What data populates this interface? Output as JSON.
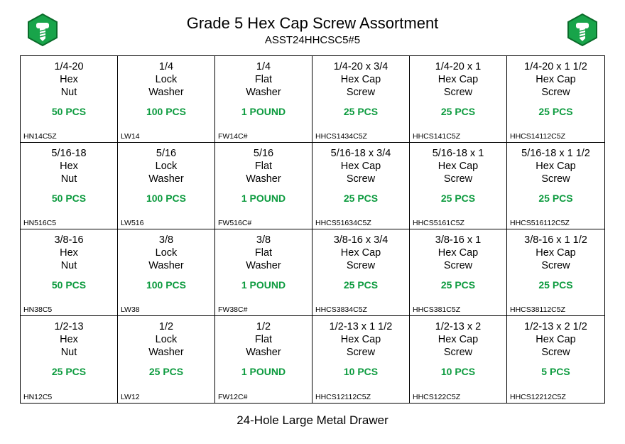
{
  "colors": {
    "accent_green": "#0d9b3f",
    "icon_dark": "#0a6b2a",
    "text": "#000000",
    "border": "#000000",
    "background": "#ffffff"
  },
  "header": {
    "title": "Grade 5 Hex Cap Screw Assortment",
    "subtitle": "ASST24HHCSC5#5"
  },
  "footer": "24-Hole Large Metal Drawer",
  "grid": {
    "columns": 6,
    "rows": 4,
    "cells": [
      {
        "line1": "1/4-20",
        "line2": "Hex",
        "line3": "Nut",
        "qty": "50 PCS",
        "sku": "HN14C5Z"
      },
      {
        "line1": "1/4",
        "line2": "Lock",
        "line3": "Washer",
        "qty": "100 PCS",
        "sku": "LW14"
      },
      {
        "line1": "1/4",
        "line2": "Flat",
        "line3": "Washer",
        "qty": "1 POUND",
        "sku": "FW14C#"
      },
      {
        "line1": "1/4-20 x 3/4",
        "line2": "Hex Cap",
        "line3": "Screw",
        "qty": "25 PCS",
        "sku": "HHCS1434C5Z"
      },
      {
        "line1": "1/4-20 x 1",
        "line2": "Hex Cap",
        "line3": "Screw",
        "qty": "25 PCS",
        "sku": "HHCS141C5Z"
      },
      {
        "line1": "1/4-20 x 1 1/2",
        "line2": "Hex Cap",
        "line3": "Screw",
        "qty": "25 PCS",
        "sku": "HHCS14112C5Z"
      },
      {
        "line1": "5/16-18",
        "line2": "Hex",
        "line3": "Nut",
        "qty": "50 PCS",
        "sku": "HN516C5"
      },
      {
        "line1": "5/16",
        "line2": "Lock",
        "line3": "Washer",
        "qty": "100 PCS",
        "sku": "LW516"
      },
      {
        "line1": "5/16",
        "line2": "Flat",
        "line3": "Washer",
        "qty": "1 POUND",
        "sku": "FW516C#"
      },
      {
        "line1": "5/16-18 x 3/4",
        "line2": "Hex Cap",
        "line3": "Screw",
        "qty": "25 PCS",
        "sku": "HHCS51634C5Z"
      },
      {
        "line1": "5/16-18 x 1",
        "line2": "Hex Cap",
        "line3": "Screw",
        "qty": "25 PCS",
        "sku": "HHCS5161C5Z"
      },
      {
        "line1": "5/16-18 x 1 1/2",
        "line2": "Hex Cap",
        "line3": "Screw",
        "qty": "25 PCS",
        "sku": "HHCS516112C5Z"
      },
      {
        "line1": "3/8-16",
        "line2": "Hex",
        "line3": "Nut",
        "qty": "50 PCS",
        "sku": "HN38C5"
      },
      {
        "line1": "3/8",
        "line2": "Lock",
        "line3": "Washer",
        "qty": "100 PCS",
        "sku": "LW38"
      },
      {
        "line1": "3/8",
        "line2": "Flat",
        "line3": "Washer",
        "qty": "1 POUND",
        "sku": "FW38C#"
      },
      {
        "line1": "3/8-16 x 3/4",
        "line2": "Hex Cap",
        "line3": "Screw",
        "qty": "25 PCS",
        "sku": "HHCS3834C5Z"
      },
      {
        "line1": "3/8-16 x 1",
        "line2": "Hex Cap",
        "line3": "Screw",
        "qty": "25 PCS",
        "sku": "HHCS381C5Z"
      },
      {
        "line1": "3/8-16 x 1 1/2",
        "line2": "Hex Cap",
        "line3": "Screw",
        "qty": "25 PCS",
        "sku": "HHCS38112C5Z"
      },
      {
        "line1": "1/2-13",
        "line2": "Hex",
        "line3": "Nut",
        "qty": "25 PCS",
        "sku": "HN12C5"
      },
      {
        "line1": "1/2",
        "line2": "Lock",
        "line3": "Washer",
        "qty": "25 PCS",
        "sku": "LW12"
      },
      {
        "line1": "1/2",
        "line2": "Flat",
        "line3": "Washer",
        "qty": "1 POUND",
        "sku": "FW12C#"
      },
      {
        "line1": "1/2-13 x 1 1/2",
        "line2": "Hex Cap",
        "line3": "Screw",
        "qty": "10 PCS",
        "sku": "HHCS12112C5Z"
      },
      {
        "line1": "1/2-13 x 2",
        "line2": "Hex Cap",
        "line3": "Screw",
        "qty": "10 PCS",
        "sku": "HHCS122C5Z"
      },
      {
        "line1": "1/2-13 x 2 1/2",
        "line2": "Hex Cap",
        "line3": "Screw",
        "qty": "5 PCS",
        "sku": "HHCS12212C5Z"
      }
    ]
  }
}
